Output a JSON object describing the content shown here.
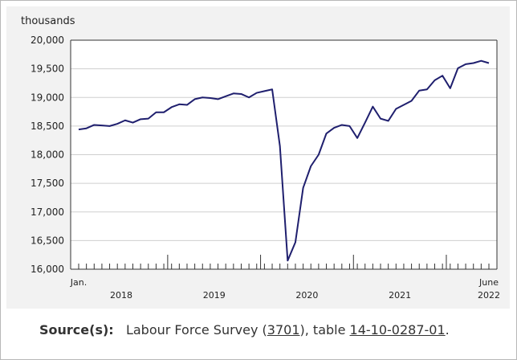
{
  "chart_data": {
    "type": "line",
    "ylabel": "thousands",
    "ylim": [
      16000,
      20000
    ],
    "yticks": [
      16000,
      16500,
      17000,
      17500,
      18000,
      18500,
      19000,
      19500,
      20000
    ],
    "ytick_labels": [
      "16,000",
      "16,500",
      "17,000",
      "17,500",
      "18,000",
      "18,500",
      "19,000",
      "19,500",
      "20,000"
    ],
    "x_start_label": "Jan.",
    "x_end_label": "June",
    "year_labels": [
      "2018",
      "2019",
      "2020",
      "2021",
      "2022"
    ],
    "grid": "horizontal",
    "legend": "none",
    "line_color": "#1f1f6e",
    "x": [
      "2018-01",
      "2018-02",
      "2018-03",
      "2018-04",
      "2018-05",
      "2018-06",
      "2018-07",
      "2018-08",
      "2018-09",
      "2018-10",
      "2018-11",
      "2018-12",
      "2019-01",
      "2019-02",
      "2019-03",
      "2019-04",
      "2019-05",
      "2019-06",
      "2019-07",
      "2019-08",
      "2019-09",
      "2019-10",
      "2019-11",
      "2019-12",
      "2020-01",
      "2020-02",
      "2020-03",
      "2020-04",
      "2020-05",
      "2020-06",
      "2020-07",
      "2020-08",
      "2020-09",
      "2020-10",
      "2020-11",
      "2020-12",
      "2021-01",
      "2021-02",
      "2021-03",
      "2021-04",
      "2021-05",
      "2021-06",
      "2021-07",
      "2021-08",
      "2021-09",
      "2021-10",
      "2021-11",
      "2021-12",
      "2022-01",
      "2022-02",
      "2022-03",
      "2022-04",
      "2022-05",
      "2022-06"
    ],
    "series": [
      {
        "values": [
          18440,
          18460,
          18520,
          18510,
          18500,
          18540,
          18600,
          18560,
          18620,
          18630,
          18740,
          18740,
          18830,
          18880,
          18870,
          18970,
          19000,
          18990,
          18970,
          19020,
          19070,
          19060,
          19000,
          19080,
          19110,
          19140,
          18150,
          16150,
          16470,
          17420,
          17800,
          18000,
          18370,
          18470,
          18520,
          18500,
          18290,
          18560,
          18840,
          18630,
          18590,
          18800,
          18870,
          18940,
          19120,
          19140,
          19300,
          19380,
          19160,
          19510,
          19580,
          19600,
          19640,
          19600
        ]
      }
    ]
  },
  "source": {
    "label": "Source(s):",
    "text_before": "Labour Force Survey (",
    "survey_number": "3701",
    "text_middle": "), table ",
    "table_number": "14-10-0287-01",
    "text_after": "."
  }
}
